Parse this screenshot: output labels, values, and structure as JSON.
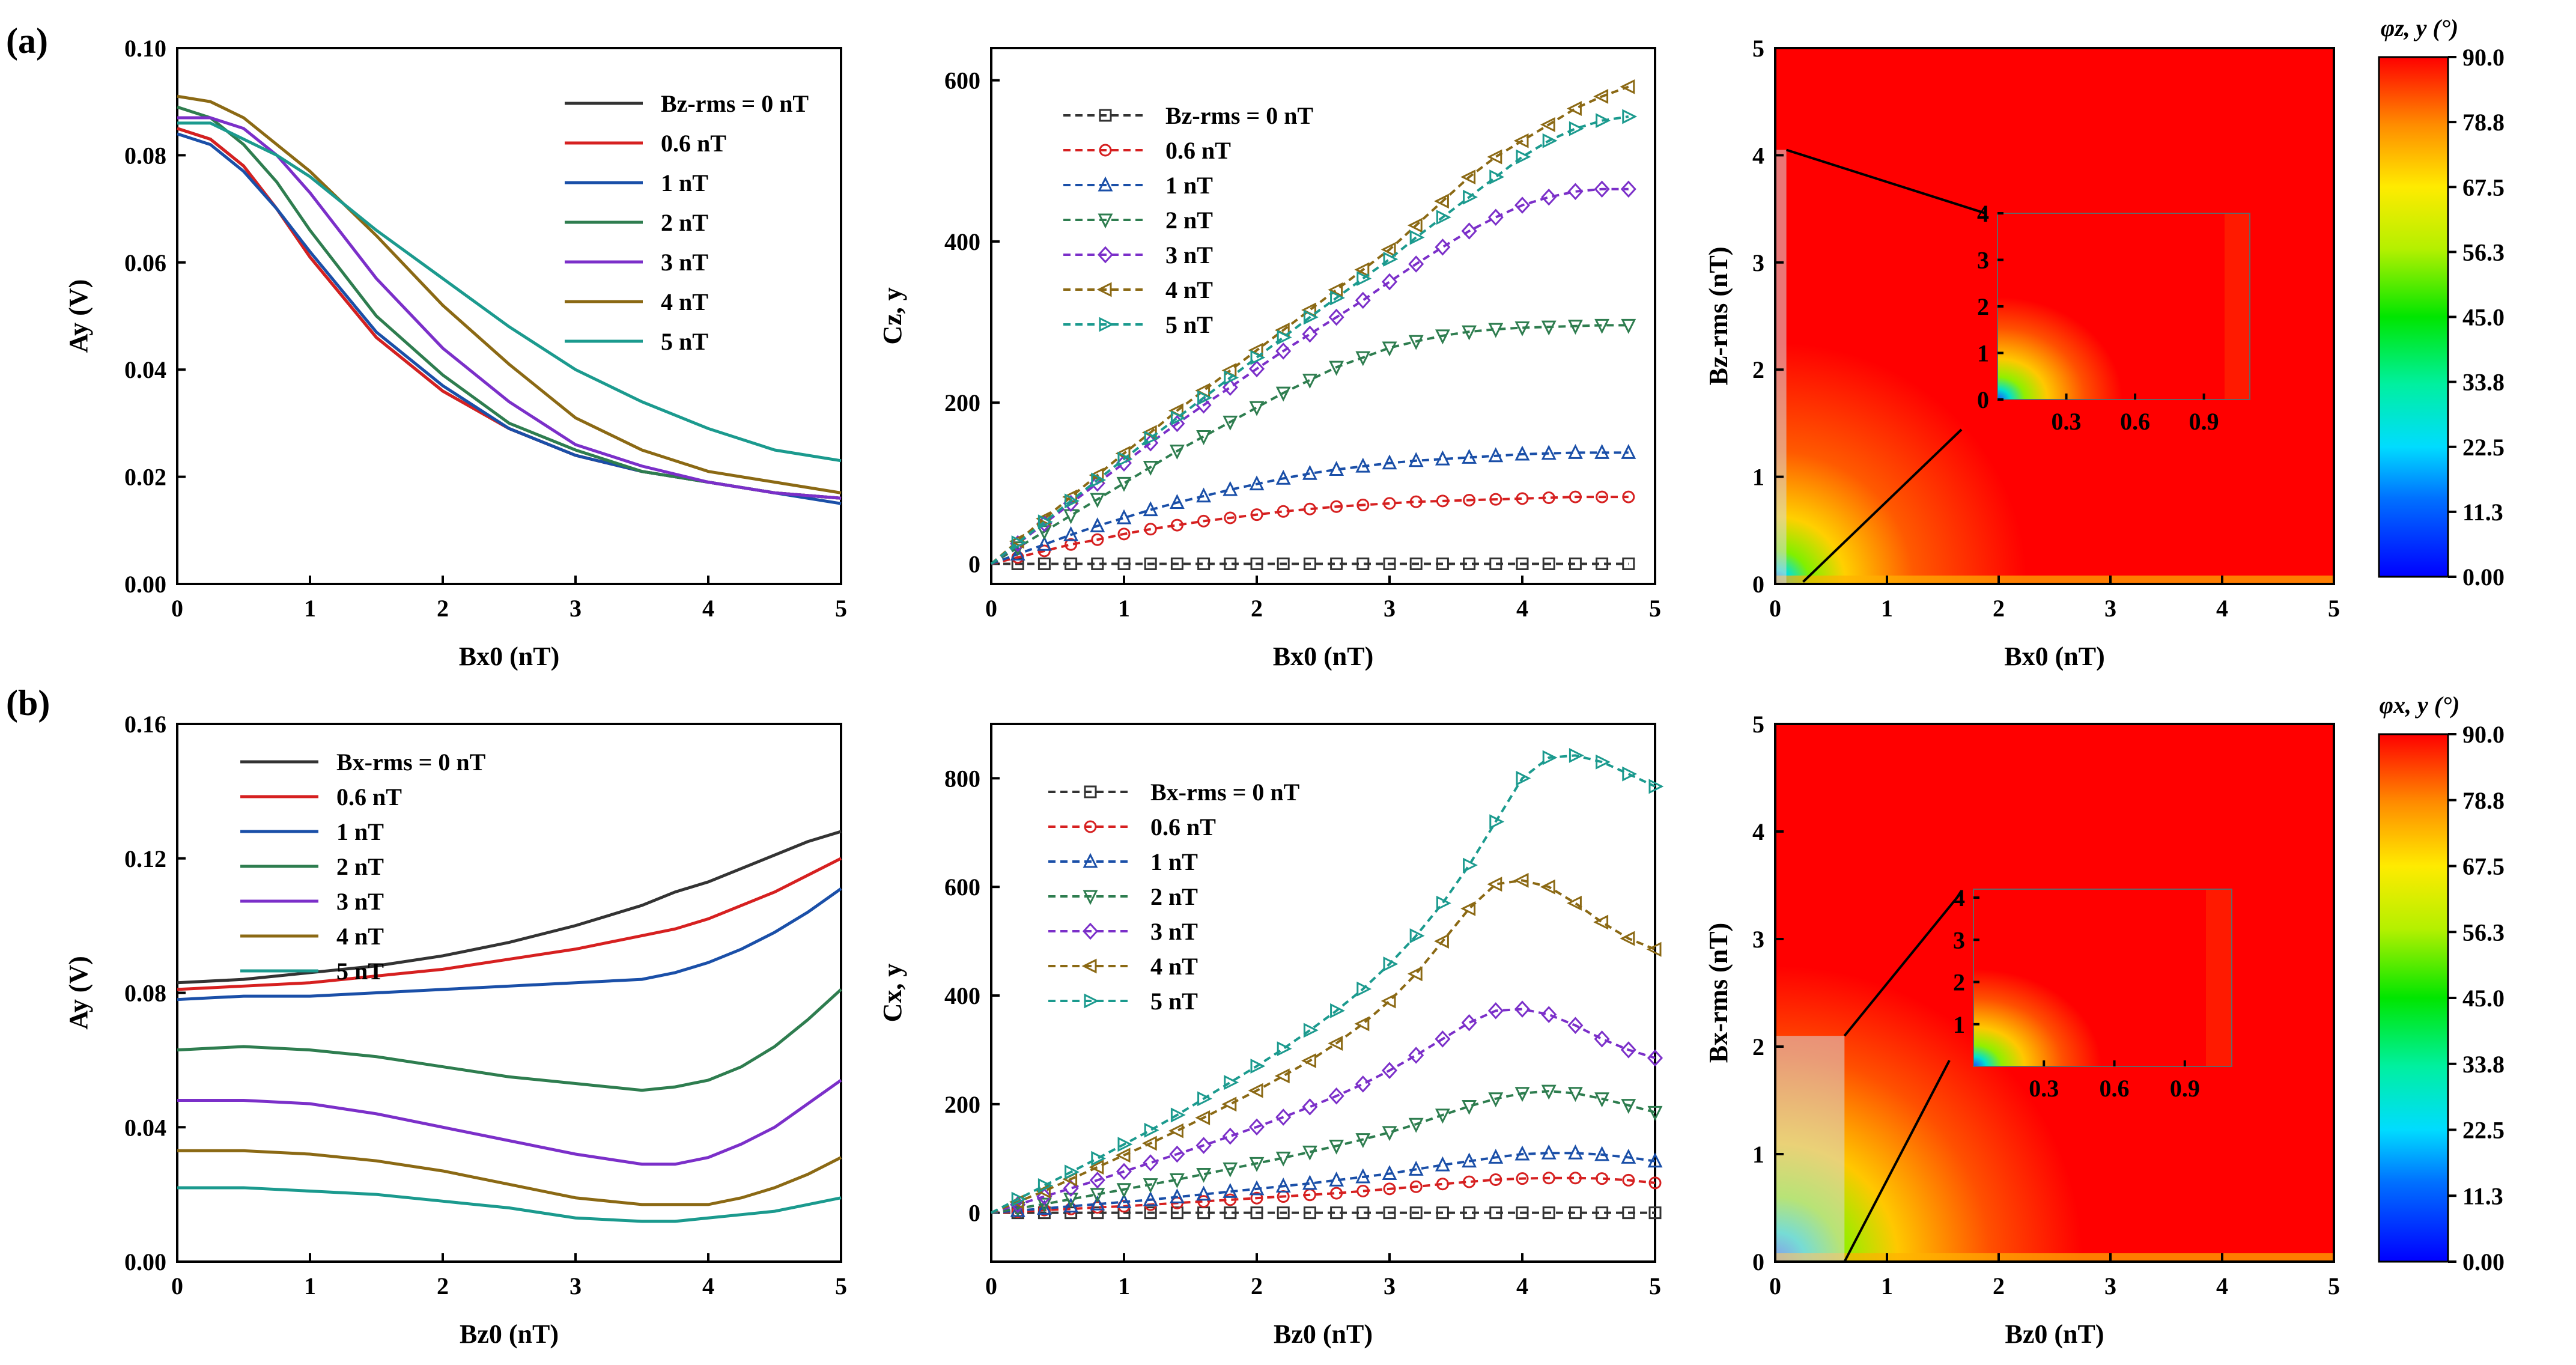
{
  "panel_labels": [
    "(a)",
    "(b)"
  ],
  "colorbars": [
    {
      "title": "φz, y (°)",
      "ticks": [
        "90.0",
        "78.8",
        "67.5",
        "56.3",
        "45.0",
        "33.8",
        "22.5",
        "11.3",
        "0.00"
      ]
    },
    {
      "title": "φx, y (°)",
      "ticks": [
        "90.0",
        "78.8",
        "67.5",
        "56.3",
        "45.0",
        "33.8",
        "22.5",
        "11.3",
        "0.00"
      ]
    }
  ],
  "series_colors": [
    "#333333",
    "#d62020",
    "#1a4fa8",
    "#2e7d4f",
    "#7b2fc9",
    "#8b6914",
    "#1b9a8e"
  ],
  "chart_data": [
    {
      "id": "a1",
      "type": "line",
      "xlabel": "Bx0 (nT)",
      "ylabel": "Ay (V)",
      "xlim": [
        0,
        5
      ],
      "ylim": [
        0,
        0.1
      ],
      "xticks": [
        "0",
        "1",
        "2",
        "3",
        "4",
        "5"
      ],
      "yticks": [
        "0.00",
        "0.02",
        "0.04",
        "0.06",
        "0.08",
        "0.10"
      ],
      "legend": {
        "position": "top-right",
        "entries": [
          "Bz-rms = 0 nT",
          "0.6 nT",
          "1 nT",
          "2 nT",
          "3 nT",
          "4 nT",
          "5 nT"
        ]
      },
      "x": [
        0,
        0.25,
        0.5,
        0.75,
        1,
        1.5,
        2,
        2.5,
        3,
        3.5,
        4,
        4.5,
        5
      ],
      "series": [
        {
          "name": "0 nT",
          "values": [
            0.085,
            0.083,
            0.078,
            0.07,
            0.061,
            0.046,
            0.036,
            0.029,
            0.024,
            0.021,
            0.019,
            0.017,
            0.016
          ]
        },
        {
          "name": "0.6 nT",
          "values": [
            0.085,
            0.083,
            0.078,
            0.07,
            0.061,
            0.046,
            0.036,
            0.029,
            0.024,
            0.021,
            0.019,
            0.017,
            0.016
          ]
        },
        {
          "name": "1 nT",
          "values": [
            0.084,
            0.082,
            0.077,
            0.07,
            0.062,
            0.047,
            0.037,
            0.029,
            0.024,
            0.021,
            0.019,
            0.017,
            0.015
          ]
        },
        {
          "name": "2 nT",
          "values": [
            0.089,
            0.087,
            0.082,
            0.075,
            0.066,
            0.05,
            0.039,
            0.03,
            0.025,
            0.021,
            0.019,
            0.017,
            0.016
          ]
        },
        {
          "name": "3 nT",
          "values": [
            0.087,
            0.087,
            0.085,
            0.08,
            0.073,
            0.057,
            0.044,
            0.034,
            0.026,
            0.022,
            0.019,
            0.017,
            0.016
          ]
        },
        {
          "name": "4 nT",
          "values": [
            0.091,
            0.09,
            0.087,
            0.082,
            0.077,
            0.065,
            0.052,
            0.041,
            0.031,
            0.025,
            0.021,
            0.019,
            0.017
          ]
        },
        {
          "name": "5 nT",
          "values": [
            0.086,
            0.086,
            0.083,
            0.08,
            0.076,
            0.066,
            0.057,
            0.048,
            0.04,
            0.034,
            0.029,
            0.025,
            0.023
          ]
        }
      ]
    },
    {
      "id": "a2",
      "type": "line",
      "xlabel": "Bx0 (nT)",
      "ylabel": "Cz, y",
      "xlim": [
        0,
        5
      ],
      "ylim": [
        -25,
        640
      ],
      "xticks": [
        "0",
        "1",
        "2",
        "3",
        "4",
        "5"
      ],
      "yticks": [
        "0",
        "200",
        "400",
        "600"
      ],
      "legend": {
        "position": "top-left",
        "entries": [
          "Bz-rms = 0 nT",
          "0.6 nT",
          "1 nT",
          "2 nT",
          "3 nT",
          "4 nT",
          "5 nT"
        ]
      },
      "x": [
        0,
        0.2,
        0.4,
        0.6,
        0.8,
        1,
        1.2,
        1.4,
        1.6,
        1.8,
        2,
        2.2,
        2.4,
        2.6,
        2.8,
        3,
        3.2,
        3.4,
        3.6,
        3.8,
        4,
        4.2,
        4.4,
        4.6,
        4.8
      ],
      "series": [
        {
          "name": "0 nT",
          "values": [
            0,
            0,
            0,
            0,
            0,
            0,
            0,
            0,
            0,
            0,
            0,
            0,
            0,
            0,
            0,
            0,
            0,
            0,
            0,
            0,
            0,
            0,
            0,
            0,
            0
          ]
        },
        {
          "name": "0.6 nT",
          "values": [
            0,
            8,
            16,
            24,
            30,
            37,
            43,
            48,
            53,
            57,
            61,
            65,
            68,
            71,
            73,
            75,
            77,
            78,
            79,
            80,
            81,
            82,
            83,
            83,
            83
          ]
        },
        {
          "name": "1 nT",
          "values": [
            0,
            12,
            24,
            36,
            47,
            57,
            67,
            76,
            84,
            92,
            99,
            106,
            112,
            117,
            121,
            125,
            128,
            130,
            132,
            134,
            136,
            137,
            138,
            138,
            138
          ]
        },
        {
          "name": "2 nT",
          "values": [
            0,
            20,
            40,
            60,
            80,
            100,
            120,
            140,
            158,
            176,
            194,
            212,
            228,
            244,
            256,
            268,
            276,
            283,
            288,
            291,
            293,
            294,
            295,
            296,
            296
          ]
        },
        {
          "name": "3 nT",
          "values": [
            0,
            25,
            50,
            75,
            100,
            125,
            150,
            174,
            197,
            219,
            242,
            264,
            285,
            306,
            327,
            350,
            372,
            393,
            413,
            430,
            445,
            455,
            462,
            465,
            465
          ]
        },
        {
          "name": "4 nT",
          "values": [
            0,
            28,
            56,
            83,
            110,
            137,
            163,
            190,
            215,
            240,
            265,
            290,
            315,
            340,
            365,
            390,
            420,
            450,
            480,
            505,
            525,
            545,
            565,
            580,
            592
          ]
        },
        {
          "name": "5 nT",
          "values": [
            0,
            26,
            52,
            78,
            104,
            130,
            156,
            181,
            206,
            231,
            256,
            281,
            306,
            330,
            354,
            378,
            405,
            430,
            455,
            480,
            505,
            525,
            540,
            550,
            555
          ]
        }
      ]
    },
    {
      "id": "a3",
      "type": "heatmap",
      "xlabel": "Bx0 (nT)",
      "ylabel": "Bz-rms (nT)",
      "xlim": [
        0,
        5
      ],
      "ylim": [
        0,
        5
      ],
      "xticks": [
        "0",
        "1",
        "2",
        "3",
        "4",
        "5"
      ],
      "yticks": [
        "0",
        "1",
        "2",
        "3",
        "4",
        "5"
      ],
      "inset": {
        "xticks": [
          "0.3",
          "0.6",
          "0.9"
        ],
        "yticks": [
          "0",
          "1",
          "2",
          "3",
          "4"
        ],
        "xlim": [
          0,
          1.1
        ],
        "ylim": [
          0,
          4
        ]
      }
    },
    {
      "id": "b1",
      "type": "line",
      "xlabel": "Bz0 (nT)",
      "ylabel": "Ay (V)",
      "xlim": [
        0,
        5
      ],
      "ylim": [
        0,
        0.16
      ],
      "xticks": [
        "0",
        "1",
        "2",
        "3",
        "4",
        "5"
      ],
      "yticks": [
        "0.00",
        "0.04",
        "0.08",
        "0.12",
        "0.16"
      ],
      "legend": {
        "position": "top-left",
        "entries": [
          "Bx-rms = 0 nT",
          "0.6 nT",
          "1 nT",
          "2 nT",
          "3 nT",
          "4 nT",
          "5 nT"
        ]
      },
      "x": [
        0,
        0.5,
        1,
        1.5,
        2,
        2.5,
        3,
        3.5,
        3.75,
        4,
        4.25,
        4.5,
        4.75,
        5
      ],
      "series": [
        {
          "name": "0 nT",
          "values": [
            0.083,
            0.084,
            0.086,
            0.088,
            0.091,
            0.095,
            0.1,
            0.106,
            0.11,
            0.113,
            0.117,
            0.121,
            0.125,
            0.128
          ]
        },
        {
          "name": "0.6 nT",
          "values": [
            0.081,
            0.082,
            0.083,
            0.085,
            0.087,
            0.09,
            0.093,
            0.097,
            0.099,
            0.102,
            0.106,
            0.11,
            0.115,
            0.12
          ]
        },
        {
          "name": "1 nT",
          "values": [
            0.078,
            0.079,
            0.079,
            0.08,
            0.081,
            0.082,
            0.083,
            0.084,
            0.086,
            0.089,
            0.093,
            0.098,
            0.104,
            0.111
          ]
        },
        {
          "name": "2 nT",
          "values": [
            0.063,
            0.064,
            0.063,
            0.061,
            0.058,
            0.055,
            0.053,
            0.051,
            0.052,
            0.054,
            0.058,
            0.064,
            0.072,
            0.081
          ]
        },
        {
          "name": "3 nT",
          "values": [
            0.048,
            0.048,
            0.047,
            0.044,
            0.04,
            0.036,
            0.032,
            0.029,
            0.029,
            0.031,
            0.035,
            0.04,
            0.047,
            0.054
          ]
        },
        {
          "name": "4 nT",
          "values": [
            0.033,
            0.033,
            0.032,
            0.03,
            0.027,
            0.023,
            0.019,
            0.017,
            0.017,
            0.017,
            0.019,
            0.022,
            0.026,
            0.031
          ]
        },
        {
          "name": "5 nT",
          "values": [
            0.022,
            0.022,
            0.021,
            0.02,
            0.018,
            0.016,
            0.013,
            0.012,
            0.012,
            0.013,
            0.014,
            0.015,
            0.017,
            0.019
          ]
        }
      ]
    },
    {
      "id": "b2",
      "type": "line",
      "xlabel": "Bz0 (nT)",
      "ylabel": "Cx, y",
      "xlim": [
        0,
        5
      ],
      "ylim": [
        -90,
        900
      ],
      "xticks": [
        "0",
        "1",
        "2",
        "3",
        "4",
        "5"
      ],
      "yticks": [
        "0",
        "200",
        "400",
        "600",
        "800"
      ],
      "legend": {
        "position": "top-left",
        "entries": [
          "Bx-rms = 0 nT",
          "0.6 nT",
          "1 nT",
          "2 nT",
          "3 nT",
          "4 nT",
          "5 nT"
        ]
      },
      "x": [
        0,
        0.2,
        0.4,
        0.6,
        0.8,
        1,
        1.2,
        1.4,
        1.6,
        1.8,
        2,
        2.2,
        2.4,
        2.6,
        2.8,
        3,
        3.2,
        3.4,
        3.6,
        3.8,
        4,
        4.2,
        4.4,
        4.6,
        4.8,
        5
      ],
      "series": [
        {
          "name": "0 nT",
          "values": [
            0,
            0,
            0,
            0,
            0,
            0,
            0,
            0,
            0,
            0,
            0,
            0,
            0,
            0,
            0,
            0,
            0,
            0,
            0,
            0,
            0,
            0,
            0,
            0,
            0,
            0
          ]
        },
        {
          "name": "0.6 nT",
          "values": [
            0,
            2,
            5,
            7,
            10,
            12,
            15,
            18,
            21,
            24,
            27,
            30,
            33,
            36,
            40,
            44,
            48,
            53,
            57,
            61,
            63,
            64,
            64,
            63,
            60,
            55
          ]
        },
        {
          "name": "1 nT",
          "values": [
            0,
            4,
            8,
            12,
            16,
            20,
            24,
            29,
            34,
            39,
            44,
            49,
            54,
            60,
            66,
            72,
            80,
            88,
            95,
            102,
            108,
            110,
            110,
            107,
            102,
            95
          ]
        },
        {
          "name": "2 nT",
          "values": [
            0,
            8,
            16,
            25,
            34,
            43,
            52,
            61,
            71,
            81,
            91,
            101,
            112,
            123,
            135,
            148,
            163,
            180,
            196,
            210,
            220,
            224,
            220,
            210,
            198,
            185
          ]
        },
        {
          "name": "3 nT",
          "values": [
            0,
            15,
            30,
            45,
            60,
            76,
            92,
            108,
            124,
            141,
            158,
            176,
            195,
            215,
            237,
            262,
            290,
            320,
            350,
            372,
            375,
            365,
            345,
            320,
            300,
            285
          ]
        },
        {
          "name": "4 nT",
          "values": [
            0,
            20,
            40,
            62,
            84,
            106,
            128,
            151,
            175,
            200,
            225,
            252,
            280,
            312,
            348,
            390,
            440,
            500,
            560,
            605,
            612,
            600,
            570,
            535,
            505,
            485
          ]
        },
        {
          "name": "5 nT",
          "values": [
            0,
            25,
            50,
            75,
            100,
            126,
            152,
            180,
            210,
            240,
            270,
            302,
            336,
            372,
            412,
            458,
            510,
            570,
            640,
            720,
            800,
            838,
            842,
            830,
            808,
            785
          ]
        }
      ]
    },
    {
      "id": "b3",
      "type": "heatmap",
      "xlabel": "Bz0 (nT)",
      "ylabel": "Bx-rms (nT)",
      "xlim": [
        0,
        5
      ],
      "ylim": [
        0,
        5
      ],
      "xticks": [
        "0",
        "1",
        "2",
        "3",
        "4",
        "5"
      ],
      "yticks": [
        "0",
        "1",
        "2",
        "3",
        "4",
        "5"
      ],
      "inset": {
        "xticks": [
          "0.3",
          "0.6",
          "0.9"
        ],
        "yticks": [
          "1",
          "2",
          "3",
          "4"
        ],
        "xlim": [
          0,
          1.1
        ],
        "ylim": [
          0,
          4.2
        ]
      }
    }
  ]
}
